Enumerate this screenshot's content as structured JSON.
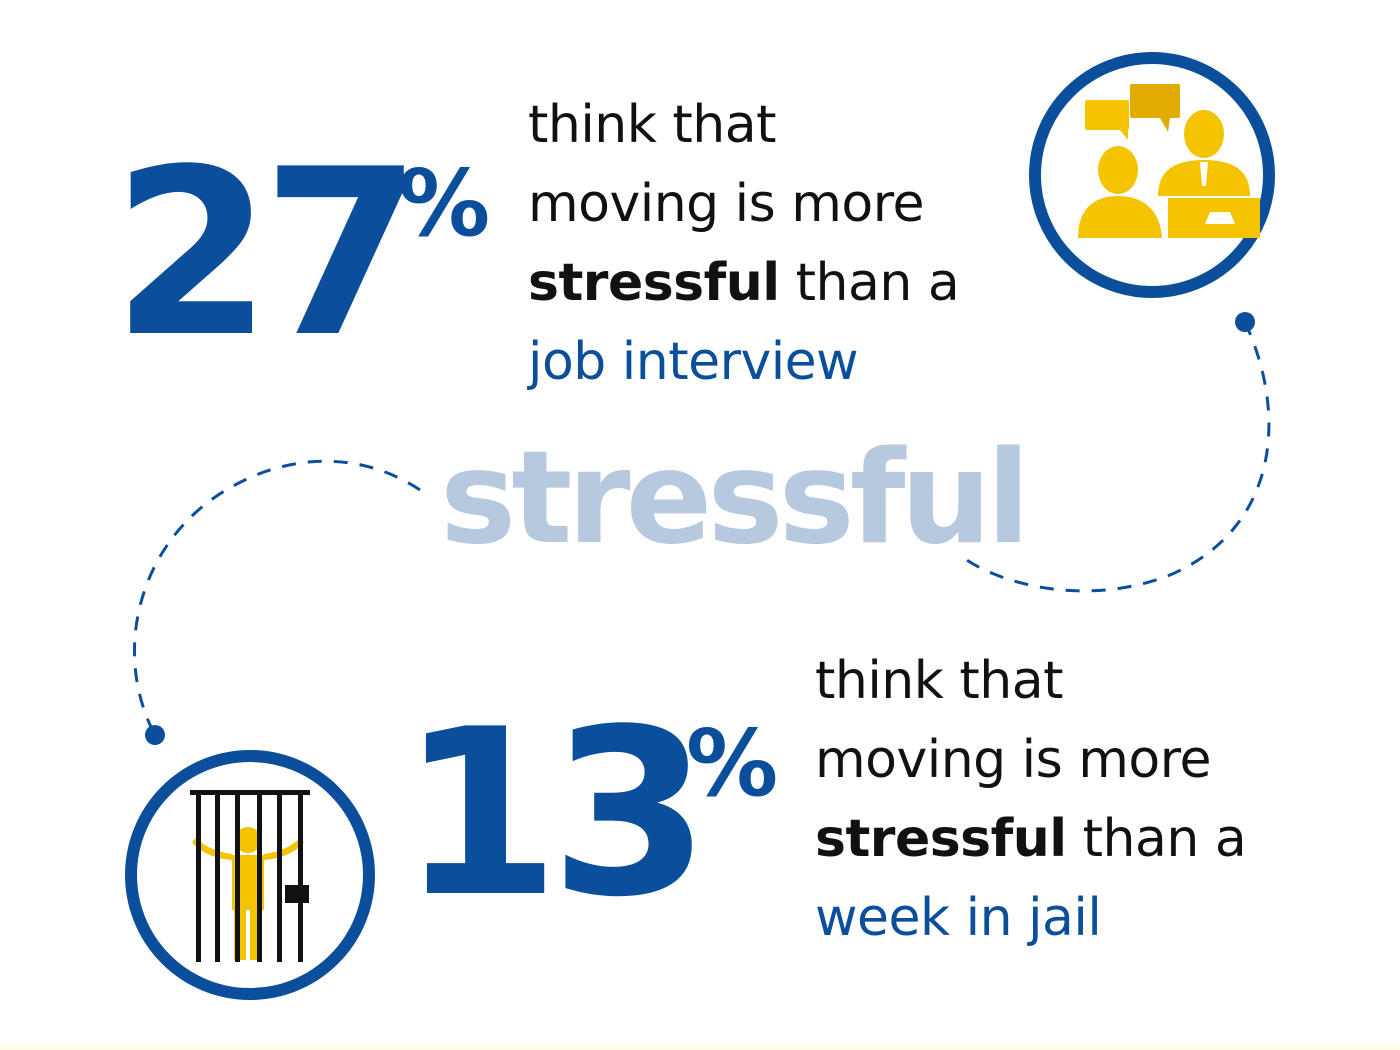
{
  "colors": {
    "primary_blue": "#0b4f9c",
    "light_blue": "#b6c9df",
    "yellow": "#f5c400",
    "dark_yellow": "#e0ac00",
    "text": "#111111"
  },
  "headline_word": "stressful",
  "stats": [
    {
      "number": "27",
      "percent_sign": "%",
      "line1": "think that",
      "line2": "moving is more",
      "line3_bold": "stressful",
      "line3_rest": " than a",
      "line4_accent": "job interview",
      "icon": "job-interview-icon"
    },
    {
      "number": "13",
      "percent_sign": "%",
      "line1": "think that",
      "line2": "moving is more",
      "line3_bold": "stressful",
      "line3_rest": " than a",
      "line4_accent": "week in jail",
      "icon": "jail-icon"
    }
  ]
}
